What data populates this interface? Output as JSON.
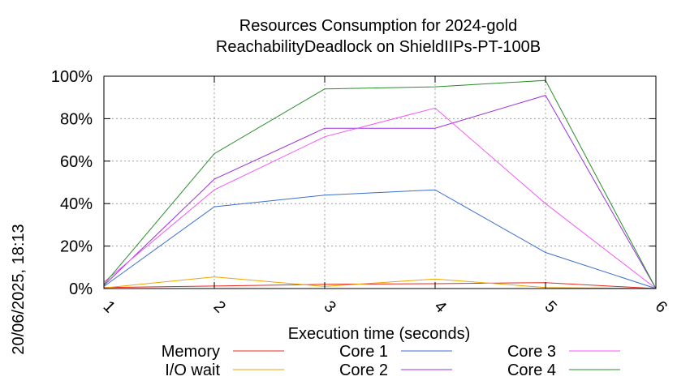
{
  "chart_data": {
    "type": "line",
    "title": "Resources Consumption for 2024-gold",
    "subtitle": "ReachabilityDeadlock on ShieldIIPs-PT-100B",
    "xlabel": "Execution time (seconds)",
    "ylabel": "",
    "side_label": "20/06/2025, 18:13",
    "xlim": [
      1,
      6
    ],
    "ylim": [
      0,
      100
    ],
    "grid": true,
    "x_ticks": [
      "1",
      "2",
      "3",
      "4",
      "5",
      "6"
    ],
    "y_ticks": [
      "0%",
      "20%",
      "40%",
      "60%",
      "80%",
      "100%"
    ],
    "legend_position": "bottom",
    "series": [
      {
        "name": "Memory",
        "color": "#e8281e",
        "x": [
          1,
          2,
          3,
          4,
          5,
          6
        ],
        "y": [
          0.5,
          1.2,
          2.0,
          2.3,
          2.8,
          0
        ]
      },
      {
        "name": "I/O wait",
        "color": "#eea500",
        "x": [
          1,
          2,
          3,
          4,
          5,
          6
        ],
        "y": [
          0.3,
          5.5,
          1.0,
          4.5,
          0.5,
          0
        ]
      },
      {
        "name": "Core 1",
        "color": "#3a6ed0",
        "x": [
          1,
          2,
          3,
          4,
          5,
          6
        ],
        "y": [
          1,
          38.5,
          44,
          46.5,
          17,
          0
        ]
      },
      {
        "name": "Core 2",
        "color": "#9a30e2",
        "x": [
          1,
          2,
          3,
          4,
          5,
          6
        ],
        "y": [
          1.5,
          51.5,
          75.5,
          75.5,
          91,
          0
        ]
      },
      {
        "name": "Core 3",
        "color": "#f455f4",
        "x": [
          1,
          2,
          3,
          4,
          5,
          6
        ],
        "y": [
          3,
          46.5,
          71.5,
          85,
          40,
          0
        ]
      },
      {
        "name": "Core 4",
        "color": "#2a8c2a",
        "x": [
          1,
          2,
          3,
          4,
          5,
          6
        ],
        "y": [
          2,
          63.5,
          94,
          95,
          98,
          0
        ]
      }
    ]
  }
}
